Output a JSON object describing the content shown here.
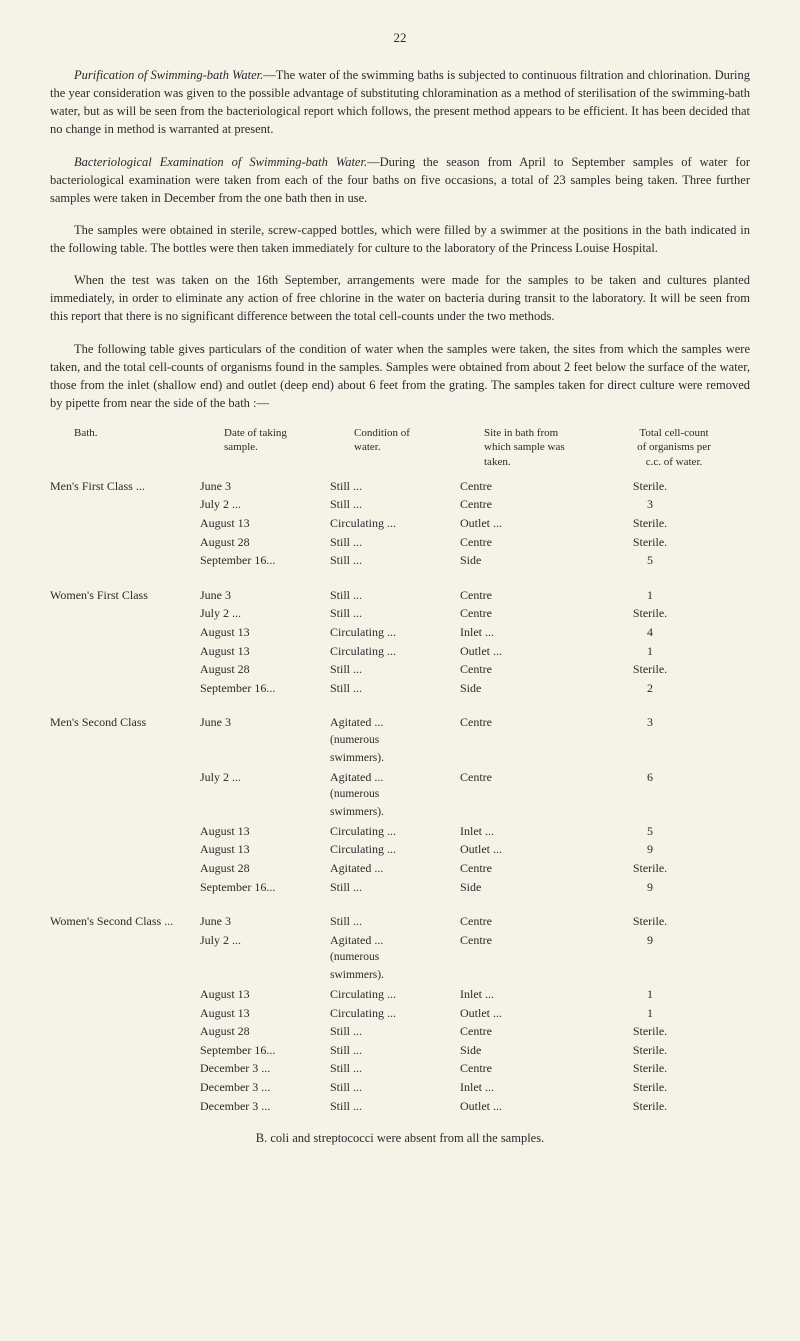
{
  "page_number": "22",
  "paragraphs": {
    "p1": {
      "lead_italic": "Purification of Swimming-bath Water.",
      "text": "—The water of the swimming baths is subjected to continuous filtration and chlorination. During the year consideration was given to the possible advantage of substituting chloramination as a method of sterilisation of the swimming-bath water, but as will be seen from the bacteriological report which follows, the present method appears to be efficient. It has been decided that no change in method is warranted at present."
    },
    "p2": {
      "lead_italic": "Bacteriological Examination of Swimming-bath Water.",
      "text": "—During the season from April to September samples of water for bacteriological examination were taken from each of the four baths on five occasions, a total of 23 samples being taken. Three further samples were taken in December from the one bath then in use."
    },
    "p3": {
      "text": "The samples were obtained in sterile, screw-capped bottles, which were filled by a swimmer at the positions in the bath indicated in the following table. The bottles were then taken immediately for culture to the laboratory of the Princess Louise Hospital."
    },
    "p4": {
      "text": "When the test was taken on the 16th September, arrangements were made for the samples to be taken and cultures planted immediately, in order to eliminate any action of free chlorine in the water on bacteria during transit to the laboratory. It will be seen from this report that there is no significant difference between the total cell-counts under the two methods."
    },
    "p5": {
      "text": "The following table gives particulars of the condition of water when the samples were taken, the sites from which the samples were taken, and the total cell-counts of organisms found in the samples. Samples were obtained from about 2 feet below the surface of the water, those from the inlet (shallow end) and outlet (deep end) about 6 feet from the grating. The samples taken for direct culture were removed by pipette from near the side of the bath :—"
    }
  },
  "table": {
    "headers": {
      "bath": "Bath.",
      "date": "Date of taking\nsample.",
      "cond": "Condition of\nwater.",
      "site": "Site in bath from\nwhich sample was\ntaken.",
      "count": "Total cell-count\nof organisms per\nc.c. of water."
    },
    "groups": [
      {
        "bath": "Men's First Class ...",
        "rows": [
          {
            "date": "June 3",
            "cond": "Still",
            "site": "Centre",
            "count": "Sterile."
          },
          {
            "date": "July 2 ...",
            "cond": "Still",
            "site": "Centre",
            "count": "3"
          },
          {
            "date": "August 13",
            "cond": "Circulating",
            "site": "Outlet ...",
            "count": "Sterile."
          },
          {
            "date": "August 28",
            "cond": "Still",
            "site": "Centre",
            "count": "Sterile."
          },
          {
            "date": "September 16...",
            "cond": "Still",
            "site": "Side",
            "count": "5"
          }
        ]
      },
      {
        "bath": "Women's First Class",
        "rows": [
          {
            "date": "June 3",
            "cond": "Still",
            "site": "Centre",
            "count": "1"
          },
          {
            "date": "July 2 ...",
            "cond": "Still",
            "site": "Centre",
            "count": "Sterile."
          },
          {
            "date": "August 13",
            "cond": "Circulating",
            "site": "Inlet ...",
            "count": "4"
          },
          {
            "date": "August 13",
            "cond": "Circulating",
            "site": "Outlet ...",
            "count": "1"
          },
          {
            "date": "August 28",
            "cond": "Still",
            "site": "Centre",
            "count": "Sterile."
          },
          {
            "date": "September 16...",
            "cond": "Still",
            "site": "Side",
            "count": "2"
          }
        ]
      },
      {
        "bath": "Men's Second Class",
        "rows": [
          {
            "date": "June 3",
            "cond": "Agitated",
            "cond_sub": "(numerous\nswimmers).",
            "site": "Centre",
            "count": "3"
          },
          {
            "date": "July 2 ...",
            "cond": "Agitated",
            "cond_sub": "(numerous\nswimmers).",
            "site": "Centre",
            "count": "6"
          },
          {
            "date": "August 13",
            "cond": "Circulating",
            "site": "Inlet ...",
            "count": "5"
          },
          {
            "date": "August 13",
            "cond": "Circulating",
            "site": "Outlet ...",
            "count": "9"
          },
          {
            "date": "August 28",
            "cond": "Agitated",
            "site": "Centre",
            "count": "Sterile."
          },
          {
            "date": "September 16...",
            "cond": "Still",
            "site": "Side",
            "count": "9"
          }
        ]
      },
      {
        "bath": "Women's Second Class ...",
        "rows": [
          {
            "date": "June 3",
            "cond": "Still",
            "site": "Centre",
            "count": "Sterile."
          },
          {
            "date": "July 2 ...",
            "cond": "Agitated",
            "cond_sub": "(numerous\nswimmers).",
            "site": "Centre",
            "count": "9"
          },
          {
            "date": "August 13",
            "cond": "Circulating",
            "site": "Inlet ...",
            "count": "1"
          },
          {
            "date": "August 13",
            "cond": "Circulating",
            "site": "Outlet ...",
            "count": "1"
          },
          {
            "date": "August 28",
            "cond": "Still",
            "site": "Centre",
            "count": "Sterile."
          },
          {
            "date": "September 16...",
            "cond": "Still",
            "site": "Side",
            "count": "Sterile."
          },
          {
            "date": "December 3 ...",
            "cond": "Still",
            "site": "Centre",
            "count": "Sterile."
          },
          {
            "date": "December 3 ...",
            "cond": "Still",
            "site": "Inlet ...",
            "count": "Sterile."
          },
          {
            "date": "December 3 ...",
            "cond": "Still",
            "site": "Outlet ...",
            "count": "Sterile."
          }
        ]
      }
    ]
  },
  "footer_note": "B. coli and streptococci were absent from all the samples.",
  "colors": {
    "background": "#f5f2e8",
    "text": "#2a2a2a"
  },
  "typography": {
    "body_font_pt": 12.5,
    "table_font_pt": 12,
    "header_font_pt": 11
  }
}
